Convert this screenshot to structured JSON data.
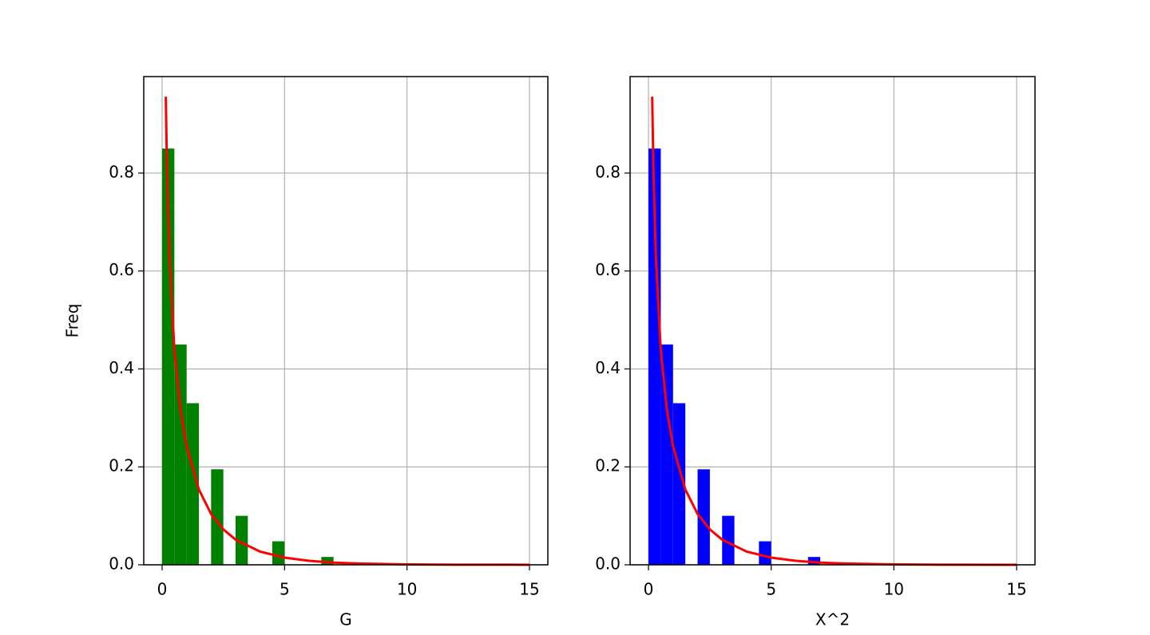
{
  "chart_data": [
    {
      "type": "histogram",
      "color": "#008000",
      "xlabel": "G",
      "ylabel": "Freq",
      "bins": [
        0,
        0.5,
        1,
        1.5,
        2,
        2.5,
        3,
        3.5,
        4,
        4.5,
        5,
        5.5,
        6,
        6.5,
        7
      ],
      "values": [
        0.85,
        0.45,
        0.33,
        0,
        0.195,
        0,
        0.1,
        0,
        0,
        0.048,
        0,
        0,
        0,
        0.016
      ],
      "curve": {
        "color": "#ff0000",
        "x": [
          0.15,
          0.2,
          0.3,
          0.5,
          0.75,
          1,
          1.5,
          2,
          2.5,
          3,
          4,
          5,
          6,
          7,
          8,
          10,
          12,
          15
        ],
        "values": [
          0.956,
          0.807,
          0.627,
          0.439,
          0.3166,
          0.242,
          0.1539,
          0.1038,
          0.0723,
          0.0514,
          0.027,
          0.01465,
          0.0081,
          0.00455,
          0.00258,
          0.00085,
          0.000286,
          5.7e-05
        ]
      },
      "xlim": [
        -0.75,
        15.75
      ],
      "ylim": [
        0,
        0.997
      ],
      "xticks": [
        0,
        5,
        10,
        15
      ],
      "yticks": [
        {
          "value": 0,
          "label": "0.0"
        },
        0.2,
        0.4,
        0.6,
        0.8
      ],
      "grid": true
    },
    {
      "type": "histogram",
      "color": "#0000ff",
      "xlabel": "X^2",
      "bins": [
        0,
        0.5,
        1,
        1.5,
        2,
        2.5,
        3,
        3.5,
        4,
        4.5,
        5,
        5.5,
        6,
        6.5,
        7
      ],
      "values": [
        0.85,
        0.45,
        0.33,
        0,
        0.195,
        0,
        0.1,
        0,
        0,
        0.048,
        0,
        0,
        0,
        0.016
      ],
      "curve": {
        "color": "#ff0000",
        "x": [
          0.15,
          0.2,
          0.3,
          0.5,
          0.75,
          1,
          1.5,
          2,
          2.5,
          3,
          4,
          5,
          6,
          7,
          8,
          10,
          12,
          15
        ],
        "values": [
          0.956,
          0.807,
          0.627,
          0.439,
          0.3166,
          0.242,
          0.1539,
          0.1038,
          0.0723,
          0.0514,
          0.027,
          0.01465,
          0.0081,
          0.00455,
          0.00258,
          0.00085,
          0.000286,
          5.7e-05
        ]
      },
      "xlim": [
        -0.75,
        15.75
      ],
      "ylim": [
        0,
        0.997
      ],
      "xticks": [
        0,
        5,
        10,
        15
      ],
      "yticks": [
        {
          "value": 0,
          "label": "0.0"
        },
        0.2,
        0.4,
        0.6,
        0.8
      ],
      "grid": true
    }
  ]
}
